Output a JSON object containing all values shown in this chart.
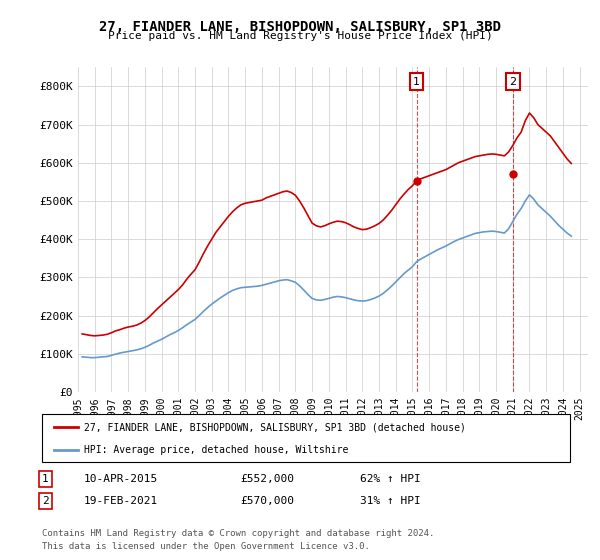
{
  "title": "27, FIANDER LANE, BISHOPDOWN, SALISBURY, SP1 3BD",
  "subtitle": "Price paid vs. HM Land Registry's House Price Index (HPI)",
  "red_label": "27, FIANDER LANE, BISHOPDOWN, SALISBURY, SP1 3BD (detached house)",
  "blue_label": "HPI: Average price, detached house, Wiltshire",
  "footnote1": "Contains HM Land Registry data © Crown copyright and database right 2024.",
  "footnote2": "This data is licensed under the Open Government Licence v3.0.",
  "annotation1_label": "1",
  "annotation1_date": "10-APR-2015",
  "annotation1_price": "£552,000",
  "annotation1_hpi": "62% ↑ HPI",
  "annotation2_label": "2",
  "annotation2_date": "19-FEB-2021",
  "annotation2_price": "£570,000",
  "annotation2_hpi": "31% ↑ HPI",
  "red_color": "#cc0000",
  "blue_color": "#6699cc",
  "background_color": "#ffffff",
  "grid_color": "#cccccc",
  "ylim": [
    0,
    850000
  ],
  "yticks": [
    0,
    100000,
    200000,
    300000,
    400000,
    500000,
    600000,
    700000,
    800000
  ],
  "ytick_labels": [
    "£0",
    "£100K",
    "£200K",
    "£300K",
    "£400K",
    "£500K",
    "£600K",
    "£700K",
    "£800K"
  ],
  "red_x": [
    1995.25,
    1995.5,
    1995.75,
    1996.0,
    1996.25,
    1996.5,
    1996.75,
    1997.0,
    1997.25,
    1997.5,
    1997.75,
    1998.0,
    1998.25,
    1998.5,
    1998.75,
    1999.0,
    1999.25,
    1999.5,
    1999.75,
    2000.0,
    2000.25,
    2000.5,
    2000.75,
    2001.0,
    2001.25,
    2001.5,
    2001.75,
    2002.0,
    2002.25,
    2002.5,
    2002.75,
    2003.0,
    2003.25,
    2003.5,
    2003.75,
    2004.0,
    2004.25,
    2004.5,
    2004.75,
    2005.0,
    2005.25,
    2005.5,
    2005.75,
    2006.0,
    2006.25,
    2006.5,
    2006.75,
    2007.0,
    2007.25,
    2007.5,
    2007.75,
    2008.0,
    2008.25,
    2008.5,
    2008.75,
    2009.0,
    2009.25,
    2009.5,
    2009.75,
    2010.0,
    2010.25,
    2010.5,
    2010.75,
    2011.0,
    2011.25,
    2011.5,
    2011.75,
    2012.0,
    2012.25,
    2012.5,
    2012.75,
    2013.0,
    2013.25,
    2013.5,
    2013.75,
    2014.0,
    2014.25,
    2014.5,
    2014.75,
    2015.0,
    2015.25,
    2015.5,
    2015.75,
    2016.0,
    2016.25,
    2016.5,
    2016.75,
    2017.0,
    2017.25,
    2017.5,
    2017.75,
    2018.0,
    2018.25,
    2018.5,
    2018.75,
    2019.0,
    2019.25,
    2019.5,
    2019.75,
    2020.0,
    2020.25,
    2020.5,
    2020.75,
    2021.0,
    2021.25,
    2021.5,
    2021.75,
    2022.0,
    2022.25,
    2022.5,
    2022.75,
    2023.0,
    2023.25,
    2023.5,
    2023.75,
    2024.0,
    2024.25,
    2024.5
  ],
  "red_y": [
    152000,
    150000,
    148000,
    147000,
    148000,
    149000,
    151000,
    155000,
    160000,
    163000,
    167000,
    170000,
    172000,
    175000,
    180000,
    187000,
    196000,
    207000,
    218000,
    228000,
    238000,
    248000,
    258000,
    268000,
    280000,
    295000,
    308000,
    320000,
    340000,
    362000,
    382000,
    400000,
    418000,
    432000,
    446000,
    460000,
    472000,
    482000,
    490000,
    494000,
    496000,
    498000,
    500000,
    502000,
    508000,
    512000,
    516000,
    520000,
    524000,
    526000,
    522000,
    515000,
    500000,
    482000,
    462000,
    442000,
    435000,
    432000,
    435000,
    440000,
    444000,
    447000,
    446000,
    443000,
    438000,
    432000,
    428000,
    425000,
    426000,
    430000,
    435000,
    441000,
    450000,
    462000,
    475000,
    490000,
    505000,
    518000,
    530000,
    540000,
    552000,
    558000,
    562000,
    566000,
    570000,
    574000,
    578000,
    582000,
    588000,
    594000,
    600000,
    604000,
    608000,
    612000,
    616000,
    618000,
    620000,
    622000,
    623000,
    622000,
    620000,
    618000,
    628000,
    645000,
    665000,
    680000,
    710000,
    730000,
    718000,
    700000,
    690000,
    680000,
    670000,
    655000,
    640000,
    625000,
    610000,
    598000
  ],
  "blue_x": [
    1995.25,
    1995.5,
    1995.75,
    1996.0,
    1996.25,
    1996.5,
    1996.75,
    1997.0,
    1997.25,
    1997.5,
    1997.75,
    1998.0,
    1998.25,
    1998.5,
    1998.75,
    1999.0,
    1999.25,
    1999.5,
    1999.75,
    2000.0,
    2000.25,
    2000.5,
    2000.75,
    2001.0,
    2001.25,
    2001.5,
    2001.75,
    2002.0,
    2002.25,
    2002.5,
    2002.75,
    2003.0,
    2003.25,
    2003.5,
    2003.75,
    2004.0,
    2004.25,
    2004.5,
    2004.75,
    2005.0,
    2005.25,
    2005.5,
    2005.75,
    2006.0,
    2006.25,
    2006.5,
    2006.75,
    2007.0,
    2007.25,
    2007.5,
    2007.75,
    2008.0,
    2008.25,
    2008.5,
    2008.75,
    2009.0,
    2009.25,
    2009.5,
    2009.75,
    2010.0,
    2010.25,
    2010.5,
    2010.75,
    2011.0,
    2011.25,
    2011.5,
    2011.75,
    2012.0,
    2012.25,
    2012.5,
    2012.75,
    2013.0,
    2013.25,
    2013.5,
    2013.75,
    2014.0,
    2014.25,
    2014.5,
    2014.75,
    2015.0,
    2015.25,
    2015.5,
    2015.75,
    2016.0,
    2016.25,
    2016.5,
    2016.75,
    2017.0,
    2017.25,
    2017.5,
    2017.75,
    2018.0,
    2018.25,
    2018.5,
    2018.75,
    2019.0,
    2019.25,
    2019.5,
    2019.75,
    2020.0,
    2020.25,
    2020.5,
    2020.75,
    2021.0,
    2021.25,
    2021.5,
    2021.75,
    2022.0,
    2022.25,
    2022.5,
    2022.75,
    2023.0,
    2023.25,
    2023.5,
    2023.75,
    2024.0,
    2024.25,
    2024.5
  ],
  "blue_y": [
    92000,
    91000,
    90000,
    90000,
    91000,
    92000,
    93000,
    96000,
    99000,
    102000,
    104000,
    106000,
    108000,
    110000,
    113000,
    117000,
    122000,
    128000,
    133000,
    138000,
    144000,
    150000,
    155000,
    161000,
    168000,
    176000,
    183000,
    190000,
    200000,
    211000,
    221000,
    230000,
    238000,
    246000,
    253000,
    260000,
    266000,
    270000,
    273000,
    274000,
    275000,
    276000,
    277000,
    279000,
    282000,
    285000,
    288000,
    291000,
    293000,
    294000,
    291000,
    287000,
    278000,
    267000,
    255000,
    245000,
    241000,
    240000,
    242000,
    245000,
    248000,
    250000,
    249000,
    247000,
    244000,
    241000,
    239000,
    238000,
    239000,
    242000,
    246000,
    251000,
    258000,
    267000,
    277000,
    288000,
    299000,
    310000,
    319000,
    328000,
    341000,
    348000,
    354000,
    360000,
    366000,
    372000,
    377000,
    382000,
    388000,
    394000,
    399000,
    403000,
    407000,
    411000,
    415000,
    417000,
    419000,
    420000,
    421000,
    420000,
    418000,
    416000,
    427000,
    446000,
    465000,
    480000,
    500000,
    516000,
    505000,
    490000,
    480000,
    470000,
    460000,
    448000,
    436000,
    426000,
    416000,
    408000
  ],
  "ann1_x": 2015.25,
  "ann1_y": 552000,
  "ann2_x": 2021.0,
  "ann2_y": 570000,
  "xtick_years": [
    1995,
    1996,
    1997,
    1998,
    1999,
    2000,
    2001,
    2002,
    2003,
    2004,
    2005,
    2006,
    2007,
    2008,
    2009,
    2010,
    2011,
    2012,
    2013,
    2014,
    2015,
    2016,
    2017,
    2018,
    2019,
    2020,
    2021,
    2022,
    2023,
    2024,
    2025
  ]
}
